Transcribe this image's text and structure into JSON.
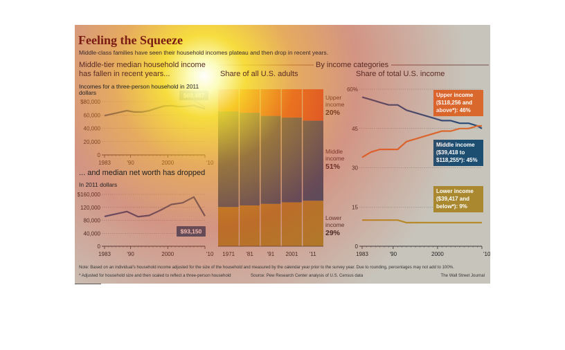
{
  "title": "Feeling the Squeeze",
  "subtitle": "Middle-class families have seen their household incomes plateau and then drop in recent years.",
  "panel1": {
    "heading_line1": "Middle-tier median household income",
    "heading_line2": "has fallen in recent years...",
    "unit_line1": "Incomes for a three-person household in 2011",
    "unit_line2": "dollars",
    "callout": "$69,487"
  },
  "panel2": {
    "heading": "... and median net worth has dropped",
    "unit": "In 2011 dollars",
    "callout": "$93,150"
  },
  "categories_header": "By income categories",
  "panel3": {
    "heading": "Share of all U.S. adults"
  },
  "panel4": {
    "heading": "Share of total U.S. income"
  },
  "notes": {
    "note": "Note: Based on an individual's household income adjusted for the size of the household and measured by the calendar year prior to the survey year. Due to rounding, percentages may not add to 100%.",
    "footnote": "* Adjusted for household size and then scaled to reflect a three-person household",
    "source": "Source: Pew Research Center analysis of U.S. Census data",
    "credit": "The Wall Street Journal"
  },
  "chart_data": [
    {
      "type": "line",
      "title": "Middle-tier median household income has fallen in recent years...",
      "ylabel": "Incomes for a three-person household in 2011 dollars",
      "x": [
        1983,
        1985,
        1987,
        1989,
        1991,
        1993,
        1995,
        1997,
        1999,
        2001,
        2003,
        2005,
        2007,
        2008,
        2009,
        2010
      ],
      "values": [
        59000,
        61500,
        64000,
        66500,
        64500,
        64500,
        66500,
        70000,
        73500,
        74000,
        72500,
        73000,
        74500,
        72500,
        71000,
        69487
      ],
      "ylim": [
        0,
        80000
      ],
      "yticks": [
        0,
        20000,
        40000,
        60000,
        80000
      ],
      "ytick_labels": [
        "0",
        "20,000",
        "40,000",
        "60,000",
        "$80,000"
      ],
      "xtick_labels": [
        "1983",
        "'90",
        "2000",
        "'10"
      ],
      "annotation": "$69,487",
      "color": "#2b4a78"
    },
    {
      "type": "line",
      "title": "... and median net worth has dropped",
      "ylabel": "In 2011 dollars",
      "x": [
        1983,
        1989,
        1992,
        1995,
        1998,
        2001,
        2004,
        2007,
        2010
      ],
      "values": [
        92000,
        107000,
        91000,
        95000,
        111000,
        129000,
        134000,
        152000,
        93150
      ],
      "ylim": [
        0,
        160000
      ],
      "yticks": [
        0,
        40000,
        80000,
        120000,
        160000
      ],
      "ytick_labels": [
        "0",
        "40,000",
        "80,000",
        "120,000",
        "$160,000"
      ],
      "xtick_labels": [
        "1983",
        "'90",
        "2000",
        "'10"
      ],
      "annotation": "$93,150",
      "color": "#2b4a78"
    },
    {
      "type": "bar",
      "stacked": true,
      "title": "Share of all U.S. adults",
      "categories": [
        "1971",
        "'81",
        "'91",
        "2001",
        "'11"
      ],
      "series": [
        {
          "name": "Lower income",
          "values": [
            25,
            26,
            27,
            28,
            29
          ],
          "color": "#a3852a"
        },
        {
          "name": "Middle income",
          "values": [
            61,
            59,
            56,
            54,
            51
          ],
          "color": "#1c4e72"
        },
        {
          "name": "Upper income",
          "values": [
            14,
            15,
            17,
            18,
            20
          ],
          "color": "#d0482c"
        }
      ],
      "labels": [
        {
          "series": "Upper income",
          "line1": "Upper",
          "line2": "income",
          "value": "20%"
        },
        {
          "series": "Middle income",
          "line1": "Middle",
          "line2": "income",
          "value": "51%"
        },
        {
          "series": "Lower income",
          "line1": "Lower",
          "line2": "income",
          "value": "29%"
        }
      ]
    },
    {
      "type": "line",
      "title": "Share of total U.S. income",
      "x": [
        1983,
        1985,
        1987,
        1989,
        1991,
        1993,
        1995,
        1997,
        1999,
        2001,
        2003,
        2005,
        2007,
        2009,
        2010
      ],
      "ylim": [
        0,
        60
      ],
      "yticks": [
        0,
        15,
        30,
        45,
        60
      ],
      "ytick_labels": [
        "0",
        "15",
        "30",
        "45",
        "60%"
      ],
      "xtick_labels": [
        "1983",
        "'90",
        "2000",
        "'10"
      ],
      "series": [
        {
          "name": "Middle income",
          "values": [
            57,
            56,
            55,
            54,
            54,
            52,
            51,
            50,
            49,
            48,
            48,
            47,
            47,
            46,
            45
          ],
          "color": "#2b4a78"
        },
        {
          "name": "Upper income",
          "values": [
            34,
            36,
            37,
            37,
            37,
            40,
            41,
            42,
            43,
            44,
            44,
            45,
            45,
            46,
            46
          ],
          "color": "#d9682c"
        },
        {
          "name": "Lower income",
          "values": [
            10,
            10,
            10,
            10,
            10,
            9,
            9,
            9,
            9,
            9,
            9,
            9,
            9,
            9,
            9
          ],
          "color": "#b48c28"
        }
      ],
      "labels": [
        {
          "series": "Upper income",
          "lines": [
            "Upper income",
            "($118,256 and",
            "above*): 46%"
          ],
          "box": "#d9682c"
        },
        {
          "series": "Middle income",
          "lines": [
            "Middle income",
            "($39,418 to",
            "$118,255*): 45%"
          ],
          "box": "#1c4e72"
        },
        {
          "series": "Lower income",
          "lines": [
            "Lower income",
            "($39,417 and",
            "below*): 9%"
          ],
          "box": "#a98830"
        }
      ]
    }
  ]
}
